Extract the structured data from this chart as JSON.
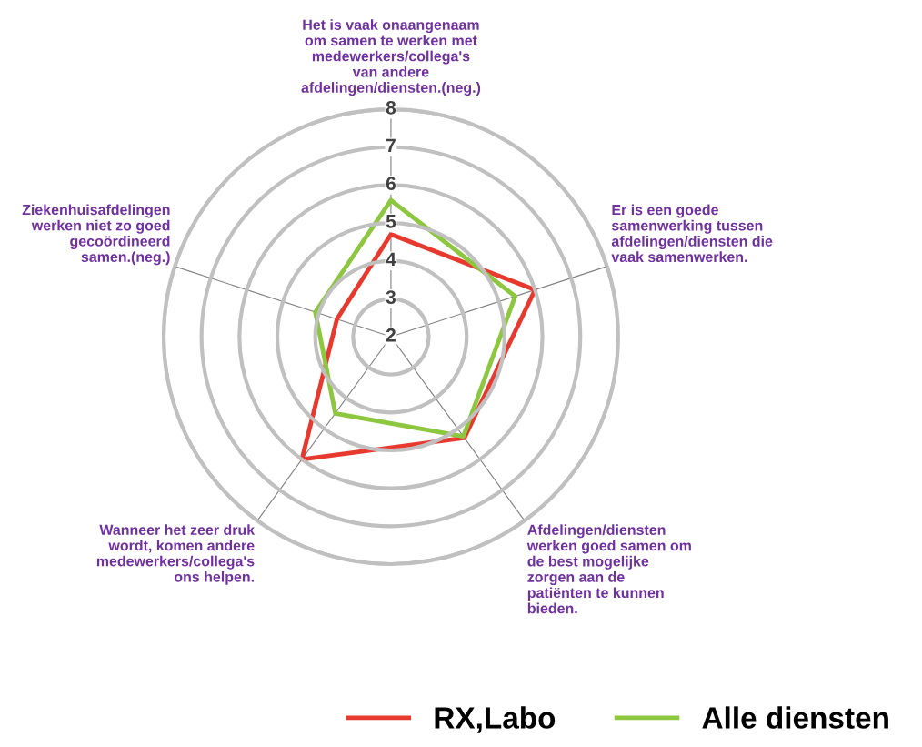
{
  "chart_data": {
    "type": "radar",
    "categories": [
      "Het is vaak onaangenaam\nom samen te werken met\nmedewerkers/collega's\nvan andere\nafdelingen/diensten.(neg.)",
      "Er is een goede\nsamenwerking tussen\nafdelingen/diensten die\nvaak samenwerken.",
      "Afdelingen/diensten\nwerken goed samen om\nde best mogelijke\nzorgen aan de\npatiënten te kunnen\nbieden.",
      "Wanneer het zeer druk\nwordt, komen andere\nmedewerkers/collega's\nons helpen.",
      "Ziekenhuisafdelingen\nwerken niet zo goed\ngecoördineerd\nsamen.(neg.)"
    ],
    "series": [
      {
        "name": "RX,Labo",
        "color": "#e8392f",
        "values": [
          4.7,
          6.0,
          5.3,
          6.0,
          3.5
        ]
      },
      {
        "name": "Alle diensten",
        "color": "#8dc63f",
        "values": [
          5.6,
          5.45,
          5.25,
          4.5,
          4.1
        ]
      }
    ],
    "ylim": [
      2,
      8
    ],
    "yticks": [
      2,
      3,
      4,
      5,
      6,
      7,
      8
    ],
    "grid": true,
    "legend": "bottom",
    "marker": "none"
  }
}
